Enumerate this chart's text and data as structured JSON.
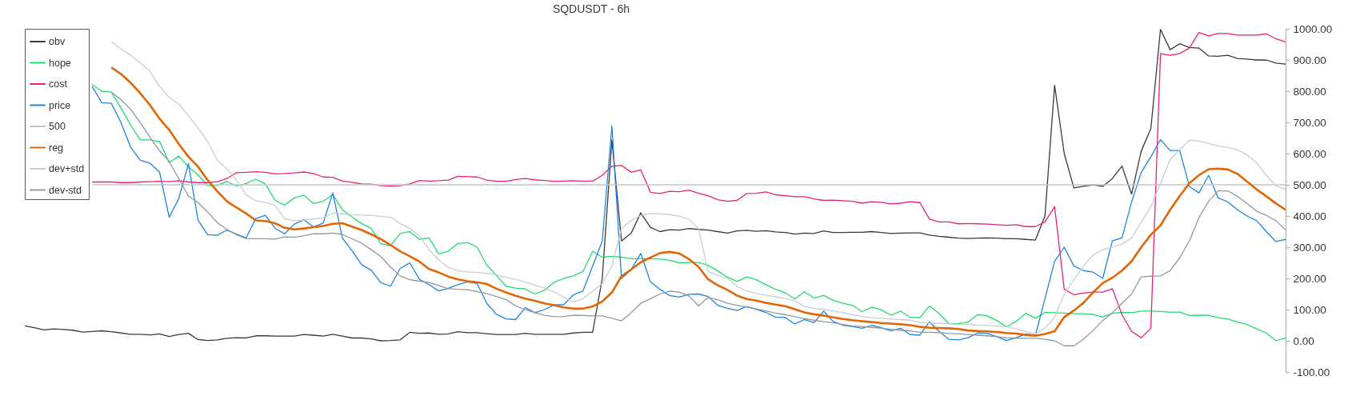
{
  "chart_data": {
    "type": "line",
    "title": "SQDUSDT - 6h",
    "categories": [
      null,
      null,
      null,
      null,
      null,
      null,
      null,
      null,
      null,
      null,
      null,
      null,
      null,
      null,
      null,
      null,
      null,
      null,
      null,
      null,
      null,
      null,
      null,
      null,
      null,
      null,
      null,
      null,
      null,
      null,
      null,
      null,
      null,
      null,
      null,
      null,
      null,
      null,
      null,
      null,
      null,
      null,
      null,
      null,
      null,
      null,
      null,
      null,
      null,
      null,
      null,
      null,
      null,
      null,
      null,
      null,
      null,
      null,
      null,
      null,
      null,
      null,
      null,
      null,
      null,
      null,
      null,
      null,
      null,
      null,
      null,
      null,
      null,
      null,
      null,
      null,
      null,
      null,
      null,
      null,
      null,
      null,
      null,
      null,
      null,
      null,
      null,
      null,
      null,
      null,
      null,
      null,
      null,
      null,
      null,
      null,
      null,
      null,
      null,
      null,
      null,
      null,
      null,
      null,
      null,
      null,
      null,
      null,
      null,
      null,
      null,
      null,
      null,
      null,
      null,
      null,
      null,
      null,
      null,
      null,
      null,
      null,
      null,
      null,
      null,
      null,
      null,
      null,
      null,
      null,
      null,
      null
    ],
    "series": [
      {
        "name": "obv",
        "color": "#3a3a3a",
        "values": [
          48,
          42,
          35,
          38,
          36,
          34,
          28,
          30,
          32,
          29,
          25,
          21,
          21,
          19,
          22,
          14,
          20,
          24,
          4,
          1,
          3,
          8,
          10,
          9,
          16,
          16,
          15,
          15,
          15,
          20,
          18,
          15,
          21,
          15,
          9,
          9,
          6,
          0,
          1,
          3,
          27,
          24,
          25,
          21,
          22,
          29,
          26,
          26,
          23,
          20,
          20,
          20,
          24,
          21,
          21,
          21,
          21,
          25,
          27,
          27,
          200,
          644,
          320,
          345,
          410,
          364,
          350,
          356,
          355,
          360,
          357,
          355,
          350,
          345,
          352,
          354,
          351,
          353,
          349,
          347,
          342,
          345,
          344,
          352,
          347,
          347,
          348,
          348,
          350,
          347,
          344,
          345,
          346,
          346,
          339,
          335,
          332,
          329,
          328,
          329,
          330,
          329,
          327,
          327,
          325,
          323,
          400,
          819,
          600,
          490,
          495,
          500,
          495,
          520,
          560,
          470,
          608,
          680,
          998,
          933,
          952,
          940,
          938,
          913,
          912,
          915,
          905,
          903,
          900,
          900,
          890,
          887
        ]
      },
      {
        "name": "hope",
        "color": "#21dc70",
        "values": [
          null,
          null,
          null,
          null,
          null,
          null,
          null,
          821,
          800,
          797,
          746,
          691,
          644,
          644,
          639,
          571,
          592,
          558,
          532,
          497,
          498,
          511,
          496,
          504,
          518,
          503,
          450,
          435,
          458,
          467,
          440,
          447,
          469,
          420,
          397,
          376,
          360,
          311,
          305,
          344,
          350,
          325,
          330,
          279,
          287,
          312,
          315,
          300,
          243,
          210,
          175,
          169,
          166,
          150,
          162,
          188,
          200,
          208,
          222,
          287,
          268,
          271,
          268,
          263,
          263,
          263,
          262,
          258,
          250,
          251,
          251,
          242,
          224,
          204,
          190,
          205,
          196,
          180,
          165,
          154,
          134,
          157,
          137,
          145,
          130,
          120,
          114,
          93,
          108,
          99,
          82,
          95,
          75,
          74,
          112,
          87,
          55,
          55,
          60,
          84,
          80,
          65,
          45,
          62,
          88,
          72,
          91,
          90,
          89,
          87,
          87,
          84,
          76,
          88,
          91,
          90,
          95,
          95,
          94,
          92,
          92,
          81,
          82,
          82,
          74,
          70,
          60,
          52,
          38,
          25,
          0,
          9
        ]
      },
      {
        "name": "cost",
        "color": "#e8207c",
        "values": [
          null,
          null,
          null,
          null,
          null,
          null,
          null,
          509,
          509,
          509,
          507,
          507,
          509,
          510,
          511,
          510,
          513,
          509,
          507,
          507,
          510,
          520,
          539,
          540,
          542,
          540,
          535,
          536,
          538,
          541,
          536,
          525,
          524,
          512,
          508,
          503,
          502,
          497,
          496,
          497,
          503,
          514,
          512,
          513,
          515,
          527,
          526,
          525,
          515,
          511,
          511,
          517,
          520,
          516,
          514,
          511,
          512,
          513,
          512,
          512,
          530,
          560,
          562,
          540,
          548,
          476,
          472,
          479,
          478,
          483,
          473,
          465,
          452,
          447,
          450,
          472,
          473,
          477,
          468,
          465,
          462,
          462,
          455,
          450,
          451,
          449,
          447,
          441,
          446,
          444,
          439,
          441,
          446,
          443,
          390,
          381,
          381,
          375,
          376,
          375,
          374,
          372,
          370,
          372,
          366,
          366,
          381,
          430,
          165,
          148,
          153,
          156,
          156,
          167,
          84,
          30,
          10,
          40,
          920,
          915,
          921,
          938,
          988,
          977,
          985,
          985,
          980,
          980,
          980,
          984,
          968,
          958
        ]
      },
      {
        "name": "price",
        "color": "#1e86e2",
        "values": [
          null,
          null,
          null,
          null,
          null,
          null,
          null,
          815,
          763,
          761,
          699,
          620,
          579,
          569,
          541,
          396,
          456,
          568,
          387,
          340,
          338,
          355,
          342,
          330,
          392,
          402,
          361,
          343,
          374,
          388,
          365,
          377,
          474,
          329,
          289,
          244,
          226,
          186,
          175,
          232,
          250,
          197,
          180,
          160,
          168,
          180,
          189,
          184,
          120,
          85,
          70,
          68,
          106,
          90,
          100,
          115,
          116,
          147,
          160,
          240,
          320,
          689,
          199,
          228,
          280,
          189,
          165,
          145,
          140,
          149,
          150,
          142,
          114,
          104,
          97,
          110,
          101,
          91,
          76,
          75,
          54,
          68,
          58,
          95,
          62,
          50,
          46,
          40,
          50,
          42,
          32,
          40,
          20,
          18,
          61,
          30,
          5,
          3,
          10,
          25,
          24,
          13,
          1,
          10,
          22,
          18,
          135,
          255,
          300,
          240,
          225,
          220,
          200,
          320,
          330,
          445,
          540,
          590,
          645,
          610,
          610,
          495,
          474,
          530,
          458,
          445,
          420,
          400,
          385,
          350,
          318,
          325
        ]
      },
      {
        "name": "500",
        "color": "#c4c4c4",
        "values": [
          null,
          null,
          null,
          null,
          null,
          null,
          null,
          500,
          500,
          500,
          500,
          500,
          500,
          500,
          500,
          500,
          500,
          500,
          500,
          500,
          500,
          500,
          500,
          500,
          500,
          500,
          500,
          500,
          500,
          500,
          500,
          500,
          500,
          500,
          500,
          500,
          500,
          500,
          500,
          500,
          500,
          500,
          500,
          500,
          500,
          500,
          500,
          500,
          500,
          500,
          500,
          500,
          500,
          500,
          500,
          500,
          500,
          500,
          500,
          500,
          500,
          500,
          500,
          500,
          500,
          500,
          500,
          500,
          500,
          500,
          500,
          500,
          500,
          500,
          500,
          500,
          500,
          500,
          500,
          500,
          500,
          500,
          500,
          500,
          500,
          500,
          500,
          500,
          500,
          500,
          500,
          500,
          500,
          500,
          500,
          500,
          500,
          500,
          500,
          500,
          500,
          500,
          500,
          500,
          500,
          500,
          500,
          500,
          500,
          500,
          500,
          500,
          500,
          500,
          500,
          500,
          500,
          500,
          500,
          500,
          500,
          500,
          500,
          500,
          500,
          500,
          500,
          500,
          500,
          500,
          500,
          500
        ]
      },
      {
        "name": "reg",
        "color": "#e06608",
        "values": [
          null,
          null,
          null,
          null,
          null,
          null,
          null,
          null,
          null,
          876,
          855,
          827,
          793,
          756,
          712,
          676,
          631,
          590,
          558,
          515,
          479,
          447,
          427,
          408,
          386,
          384,
          377,
          362,
          357,
          360,
          364,
          368,
          375,
          377,
          366,
          355,
          341,
          326,
          307,
          287,
          271,
          254,
          230,
          219,
          206,
          197,
          191,
          188,
          182,
          167,
          155,
          144,
          135,
          128,
          120,
          114,
          107,
          103,
          103,
          110,
          126,
          155,
          207,
          228,
          252,
          267,
          281,
          285,
          280,
          262,
          237,
          197,
          178,
          163,
          145,
          134,
          129,
          122,
          116,
          111,
          101,
          91,
          85,
          81,
          75,
          70,
          66,
          63,
          60,
          57,
          55,
          53,
          50,
          45,
          42,
          41,
          40,
          38,
          33,
          31,
          30,
          28,
          25,
          23,
          19,
          16,
          22,
          31,
          76,
          97,
          122,
          155,
          185,
          202,
          225,
          255,
          300,
          340,
          370,
          420,
          464,
          505,
          531,
          550,
          552,
          549,
          535,
          510,
          485,
          463,
          440,
          420
        ]
      },
      {
        "name": "dev+std",
        "color": "#c8ced4",
        "values": [
          null,
          null,
          null,
          null,
          null,
          null,
          null,
          null,
          null,
          958,
          936,
          915,
          891,
          864,
          815,
          780,
          759,
          722,
          682,
          639,
          579,
          550,
          515,
          468,
          449,
          443,
          434,
          391,
          385,
          387,
          391,
          394,
          409,
          407,
          404,
          403,
          402,
          399,
          396,
          376,
          360,
          336,
          293,
          259,
          235,
          225,
          221,
          219,
          216,
          212,
          203,
          197,
          188,
          178,
          169,
          157,
          140,
          124,
          135,
          159,
          183,
          240,
          360,
          385,
          402,
          408,
          407,
          405,
          399,
          390,
          360,
          222,
          210,
          200,
          175,
          160,
          152,
          146,
          141,
          136,
          128,
          110,
          104,
          100,
          96,
          90,
          84,
          78,
          74,
          72,
          70,
          68,
          66,
          59,
          57,
          56,
          55,
          53,
          52,
          50,
          49,
          47,
          45,
          38,
          30,
          22,
          40,
          75,
          150,
          195,
          240,
          275,
          292,
          300,
          310,
          330,
          380,
          430,
          505,
          580,
          612,
          643,
          640,
          633,
          624,
          620,
          612,
          596,
          570,
          530,
          497,
          485
        ]
      },
      {
        "name": "dev-std",
        "color": "#8e99a3",
        "values": [
          null,
          null,
          null,
          null,
          null,
          null,
          null,
          null,
          null,
          797,
          773,
          742,
          699,
          652,
          609,
          575,
          520,
          464,
          443,
          413,
          379,
          357,
          340,
          327,
          327,
          327,
          326,
          333,
          332,
          337,
          343,
          343,
          345,
          341,
          327,
          313,
          292,
          270,
          236,
          208,
          196,
          191,
          187,
          177,
          167,
          165,
          164,
          158,
          151,
          142,
          132,
          112,
          100,
          90,
          82,
          77,
          78,
          82,
          81,
          80,
          80,
          72,
          64,
          90,
          120,
          135,
          150,
          159,
          156,
          144,
          112,
          139,
          132,
          120,
          114,
          108,
          102,
          96,
          89,
          84,
          77,
          71,
          66,
          61,
          58,
          52,
          48,
          46,
          43,
          40,
          37,
          34,
          32,
          27,
          27,
          26,
          24,
          22,
          20,
          18,
          16,
          13,
          10,
          8,
          8,
          8,
          5,
          0,
          -16,
          -16,
          5,
          33,
          65,
          90,
          120,
          150,
          205,
          207,
          208,
          225,
          266,
          320,
          395,
          447,
          481,
          480,
          463,
          440,
          415,
          402,
          385,
          355
        ]
      }
    ],
    "ylim": [
      -100,
      1000
    ],
    "yticks": [
      {
        "value": -100,
        "label": "-100.00"
      },
      {
        "value": 0,
        "label": "0.00"
      },
      {
        "value": 100,
        "label": "100.00"
      },
      {
        "value": 200,
        "label": "200.00"
      },
      {
        "value": 300,
        "label": "300.00"
      },
      {
        "value": 400,
        "label": "400.00"
      },
      {
        "value": 500,
        "label": "500.00"
      },
      {
        "value": 600,
        "label": "600.00"
      },
      {
        "value": 700,
        "label": "700.00"
      },
      {
        "value": 800,
        "label": "800.00"
      },
      {
        "value": 900,
        "label": "900.00"
      },
      {
        "value": 1000,
        "label": "1000.00"
      }
    ],
    "legend": "top left",
    "tick_labels": "y"
  }
}
